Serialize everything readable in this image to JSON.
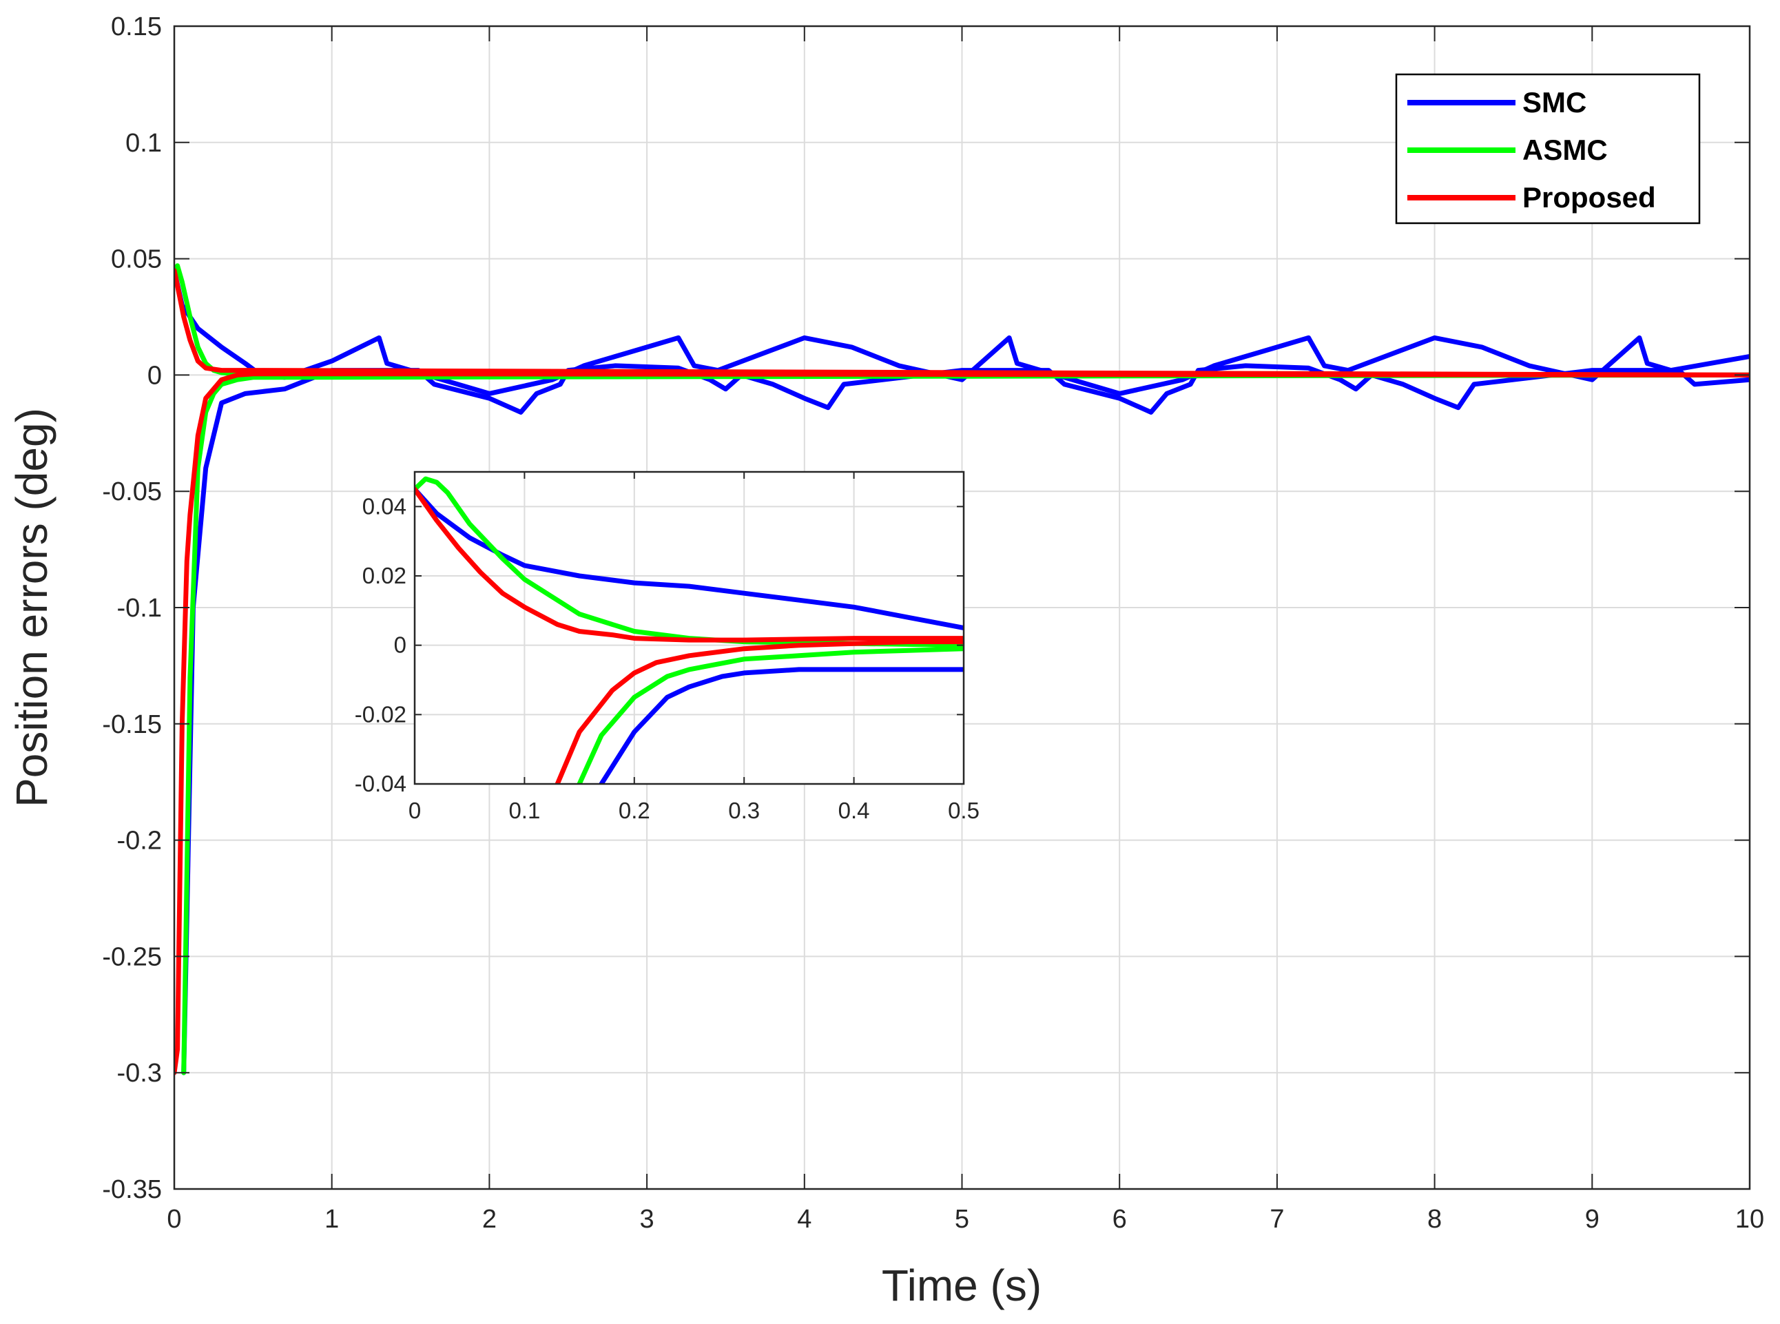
{
  "chart_data": [
    {
      "type": "line",
      "name": "main",
      "xlabel": "Time (s)",
      "ylabel": "Position errors (deg)",
      "xlim": [
        0,
        10
      ],
      "ylim": [
        -0.35,
        0.15
      ],
      "xticks": [
        0,
        1,
        2,
        3,
        4,
        5,
        6,
        7,
        8,
        9,
        10
      ],
      "yticks": [
        0.15,
        0.1,
        0.05,
        0,
        -0.05,
        -0.1,
        -0.15,
        -0.2,
        -0.25,
        -0.3,
        -0.35
      ],
      "xtick_labels": [
        "0",
        "1",
        "2",
        "3",
        "4",
        "5",
        "6",
        "7",
        "8",
        "9",
        "10"
      ],
      "ytick_labels": [
        "0.15",
        "0.1",
        "0.05",
        "0",
        "-0.05",
        "-0.1",
        "-0.15",
        "-0.2",
        "-0.25",
        "-0.3",
        "-0.35"
      ],
      "grid": true,
      "legend_position": "top-right",
      "series": [
        {
          "name": "SMC",
          "color": "#0000ff",
          "lines": [
            {
              "x": [
                0,
                0.05,
                0.15,
                0.3,
                0.45,
                0.55,
                0.7,
                1.0,
                1.3,
                1.35,
                1.5,
                2.0,
                2.4,
                2.6,
                2.8,
                3.2,
                3.3,
                3.45,
                4.0,
                4.3,
                4.6,
                5.0,
                5.3,
                5.35,
                5.5,
                6.0,
                6.4,
                6.6,
                6.8,
                7.2,
                7.3,
                7.45,
                8.0,
                8.3,
                8.6,
                9.0,
                9.3,
                9.35,
                9.5,
                10.0
              ],
              "y": [
                0.045,
                0.03,
                0.02,
                0.012,
                0.005,
                0.0,
                -0.001,
                0.006,
                0.016,
                0.005,
                0.002,
                -0.008,
                -0.002,
                0.004,
                0.008,
                0.016,
                0.004,
                0.002,
                0.016,
                0.012,
                0.004,
                -0.002,
                0.016,
                0.005,
                0.002,
                -0.008,
                -0.002,
                0.004,
                0.008,
                0.016,
                0.004,
                0.002,
                0.016,
                0.012,
                0.004,
                -0.002,
                0.016,
                0.005,
                0.002,
                0.008
              ]
            },
            {
              "x": [
                0.06,
                0.12,
                0.2,
                0.3,
                0.45,
                0.7,
                1.0,
                1.55,
                1.65,
                2.0,
                2.2,
                2.3,
                2.45,
                2.5,
                2.8,
                3.2,
                3.4,
                3.5,
                3.6,
                3.8,
                4.0,
                4.15,
                4.25,
                4.5,
                5.0,
                5.55,
                5.65,
                6.0,
                6.2,
                6.3,
                6.45,
                6.5,
                6.8,
                7.2,
                7.4,
                7.5,
                7.6,
                7.8,
                8.0,
                8.15,
                8.25,
                8.5,
                9.0,
                9.55,
                9.65,
                10.0
              ],
              "y": [
                -0.3,
                -0.1,
                -0.04,
                -0.012,
                -0.008,
                -0.006,
                0.002,
                0.002,
                -0.004,
                -0.01,
                -0.016,
                -0.008,
                -0.004,
                0.002,
                0.004,
                0.003,
                -0.002,
                -0.006,
                0.0,
                -0.004,
                -0.01,
                -0.014,
                -0.004,
                -0.002,
                0.002,
                0.002,
                -0.004,
                -0.01,
                -0.016,
                -0.008,
                -0.004,
                0.002,
                0.004,
                0.003,
                -0.002,
                -0.006,
                0.0,
                -0.004,
                -0.01,
                -0.014,
                -0.004,
                -0.002,
                0.002,
                0.002,
                -0.004,
                -0.002
              ]
            }
          ]
        },
        {
          "name": "ASMC",
          "color": "#00ff00",
          "lines": [
            {
              "x": [
                0,
                0.02,
                0.05,
                0.1,
                0.15,
                0.2,
                0.25,
                0.3,
                0.4,
                0.5,
                10.0
              ],
              "y": [
                0.045,
                0.047,
                0.04,
                0.025,
                0.012,
                0.005,
                0.002,
                0.001,
                0.0005,
                0.0,
                0.0
              ]
            },
            {
              "x": [
                0.06,
                0.1,
                0.15,
                0.2,
                0.25,
                0.3,
                0.4,
                0.5,
                10.0
              ],
              "y": [
                -0.3,
                -0.13,
                -0.04,
                -0.016,
                -0.008,
                -0.004,
                -0.002,
                -0.001,
                0.0
              ]
            }
          ]
        },
        {
          "name": "Proposed",
          "color": "#ff0000",
          "lines": [
            {
              "x": [
                0,
                0.03,
                0.06,
                0.1,
                0.15,
                0.2,
                0.3,
                0.5,
                10.0
              ],
              "y": [
                0.045,
                0.035,
                0.025,
                0.015,
                0.006,
                0.003,
                0.002,
                0.002,
                0.0
              ]
            },
            {
              "x": [
                0.0,
                0.02,
                0.05,
                0.08,
                0.1,
                0.13,
                0.15,
                0.2,
                0.3,
                0.4,
                0.5,
                10.0
              ],
              "y": [
                -0.3,
                -0.29,
                -0.15,
                -0.08,
                -0.06,
                -0.04,
                -0.026,
                -0.01,
                -0.002,
                0.0,
                0.0005,
                0.0
              ]
            }
          ]
        }
      ]
    },
    {
      "type": "line",
      "name": "inset",
      "xlabel": "",
      "ylabel": "",
      "xlim": [
        0,
        0.5
      ],
      "ylim": [
        -0.04,
        0.05
      ],
      "xticks": [
        0,
        0.1,
        0.2,
        0.3,
        0.4,
        0.5
      ],
      "yticks": [
        0.04,
        0.02,
        0,
        -0.02,
        -0.04
      ],
      "xtick_labels": [
        "0",
        "0.1",
        "0.2",
        "0.3",
        "0.4",
        "0.5"
      ],
      "ytick_labels": [
        "0.04",
        "0.02",
        "0",
        "-0.02",
        "-0.04"
      ],
      "grid": true,
      "series": [
        {
          "name": "SMC",
          "color": "#0000ff",
          "lines": [
            {
              "x": [
                0,
                0.02,
                0.05,
                0.08,
                0.1,
                0.15,
                0.2,
                0.25,
                0.3,
                0.35,
                0.4,
                0.45,
                0.5
              ],
              "y": [
                0.045,
                0.038,
                0.031,
                0.026,
                0.023,
                0.02,
                0.018,
                0.017,
                0.015,
                0.013,
                0.011,
                0.008,
                0.005
              ]
            },
            {
              "x": [
                0.17,
                0.2,
                0.23,
                0.25,
                0.28,
                0.3,
                0.35,
                0.4,
                0.45,
                0.5
              ],
              "y": [
                -0.04,
                -0.025,
                -0.015,
                -0.012,
                -0.009,
                -0.008,
                -0.007,
                -0.007,
                -0.007,
                -0.007
              ]
            }
          ]
        },
        {
          "name": "ASMC",
          "color": "#00ff00",
          "lines": [
            {
              "x": [
                0,
                0.01,
                0.02,
                0.03,
                0.05,
                0.08,
                0.1,
                0.15,
                0.2,
                0.25,
                0.3,
                0.4,
                0.5
              ],
              "y": [
                0.045,
                0.048,
                0.047,
                0.044,
                0.035,
                0.025,
                0.019,
                0.009,
                0.004,
                0.002,
                0.001,
                0.0005,
                0.0
              ]
            },
            {
              "x": [
                0.15,
                0.17,
                0.2,
                0.23,
                0.25,
                0.3,
                0.35,
                0.4,
                0.45,
                0.5
              ],
              "y": [
                -0.04,
                -0.026,
                -0.015,
                -0.009,
                -0.007,
                -0.004,
                -0.003,
                -0.002,
                -0.0015,
                -0.001
              ]
            }
          ]
        },
        {
          "name": "Proposed",
          "color": "#ff0000",
          "lines": [
            {
              "x": [
                0,
                0.02,
                0.04,
                0.06,
                0.08,
                0.1,
                0.13,
                0.15,
                0.18,
                0.2,
                0.25,
                0.3,
                0.4,
                0.5
              ],
              "y": [
                0.045,
                0.036,
                0.028,
                0.021,
                0.015,
                0.011,
                0.006,
                0.004,
                0.003,
                0.002,
                0.0015,
                0.0015,
                0.002,
                0.002
              ]
            },
            {
              "x": [
                0.13,
                0.15,
                0.18,
                0.2,
                0.22,
                0.25,
                0.3,
                0.35,
                0.4,
                0.45,
                0.5
              ],
              "y": [
                -0.04,
                -0.025,
                -0.013,
                -0.008,
                -0.005,
                -0.003,
                -0.001,
                0.0,
                0.0005,
                0.001,
                0.001
              ]
            }
          ]
        }
      ]
    }
  ]
}
